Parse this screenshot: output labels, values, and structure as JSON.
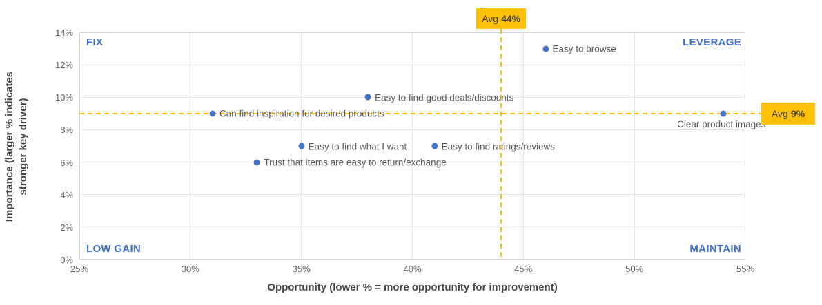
{
  "chart_data": {
    "type": "scatter",
    "title": "",
    "xlabel": "Opportunity (lower % = more opportunity for improvement)",
    "ylabel": "Importance (larger % indicates stronger key driver)",
    "xlim": [
      25,
      55
    ],
    "ylim": [
      0,
      14
    ],
    "x_tick_values": [
      25,
      30,
      35,
      40,
      45,
      50,
      55
    ],
    "x_tick_labels": [
      "25%",
      "30%",
      "35%",
      "40%",
      "45%",
      "50%",
      "55%"
    ],
    "y_tick_values": [
      0,
      2,
      4,
      6,
      8,
      10,
      12,
      14
    ],
    "y_tick_labels": [
      "0%",
      "2%",
      "4%",
      "6%",
      "8%",
      "10%",
      "12%",
      "14%"
    ],
    "grid": true,
    "legend": false,
    "points": [
      {
        "label": "Easy to browse",
        "x": 46,
        "y": 13,
        "label_position": "right"
      },
      {
        "label": "Easy to find good deals/discounts",
        "x": 38,
        "y": 10,
        "label_position": "right"
      },
      {
        "label": "Can find inspiration for desired products",
        "x": 31,
        "y": 9,
        "label_position": "right"
      },
      {
        "label": "Clear product images",
        "x": 54,
        "y": 9,
        "label_position": "below"
      },
      {
        "label": "Easy to find what I want",
        "x": 35,
        "y": 7,
        "label_position": "right"
      },
      {
        "label": "Easy to find ratings/reviews",
        "x": 41,
        "y": 7,
        "label_position": "right"
      },
      {
        "label": "Trust that items are easy to return/exchange",
        "x": 33,
        "y": 6,
        "label_position": "right"
      }
    ],
    "avg_lines": {
      "vertical": {
        "value": 44,
        "label_prefix": "Avg",
        "label_value": "44%"
      },
      "horizontal": {
        "value": 9,
        "label_prefix": "Avg",
        "label_value": "9%"
      }
    },
    "quadrants": {
      "top_left": "FIX",
      "top_right": "LEVERAGE",
      "bottom_left": "LOW GAIN",
      "bottom_right": "MAINTAIN"
    },
    "colors": {
      "point": "#4472c4",
      "quadrant_label": "#3e6ecd",
      "avg_line": "#ffc107",
      "avg_badge_bg": "#ffc107",
      "avg_badge_text": "#424242",
      "gridline": "#e4e4e4",
      "tick_text": "#5b5b5b",
      "point_label_text": "#57575a",
      "axis_title_text": "#454545"
    }
  }
}
